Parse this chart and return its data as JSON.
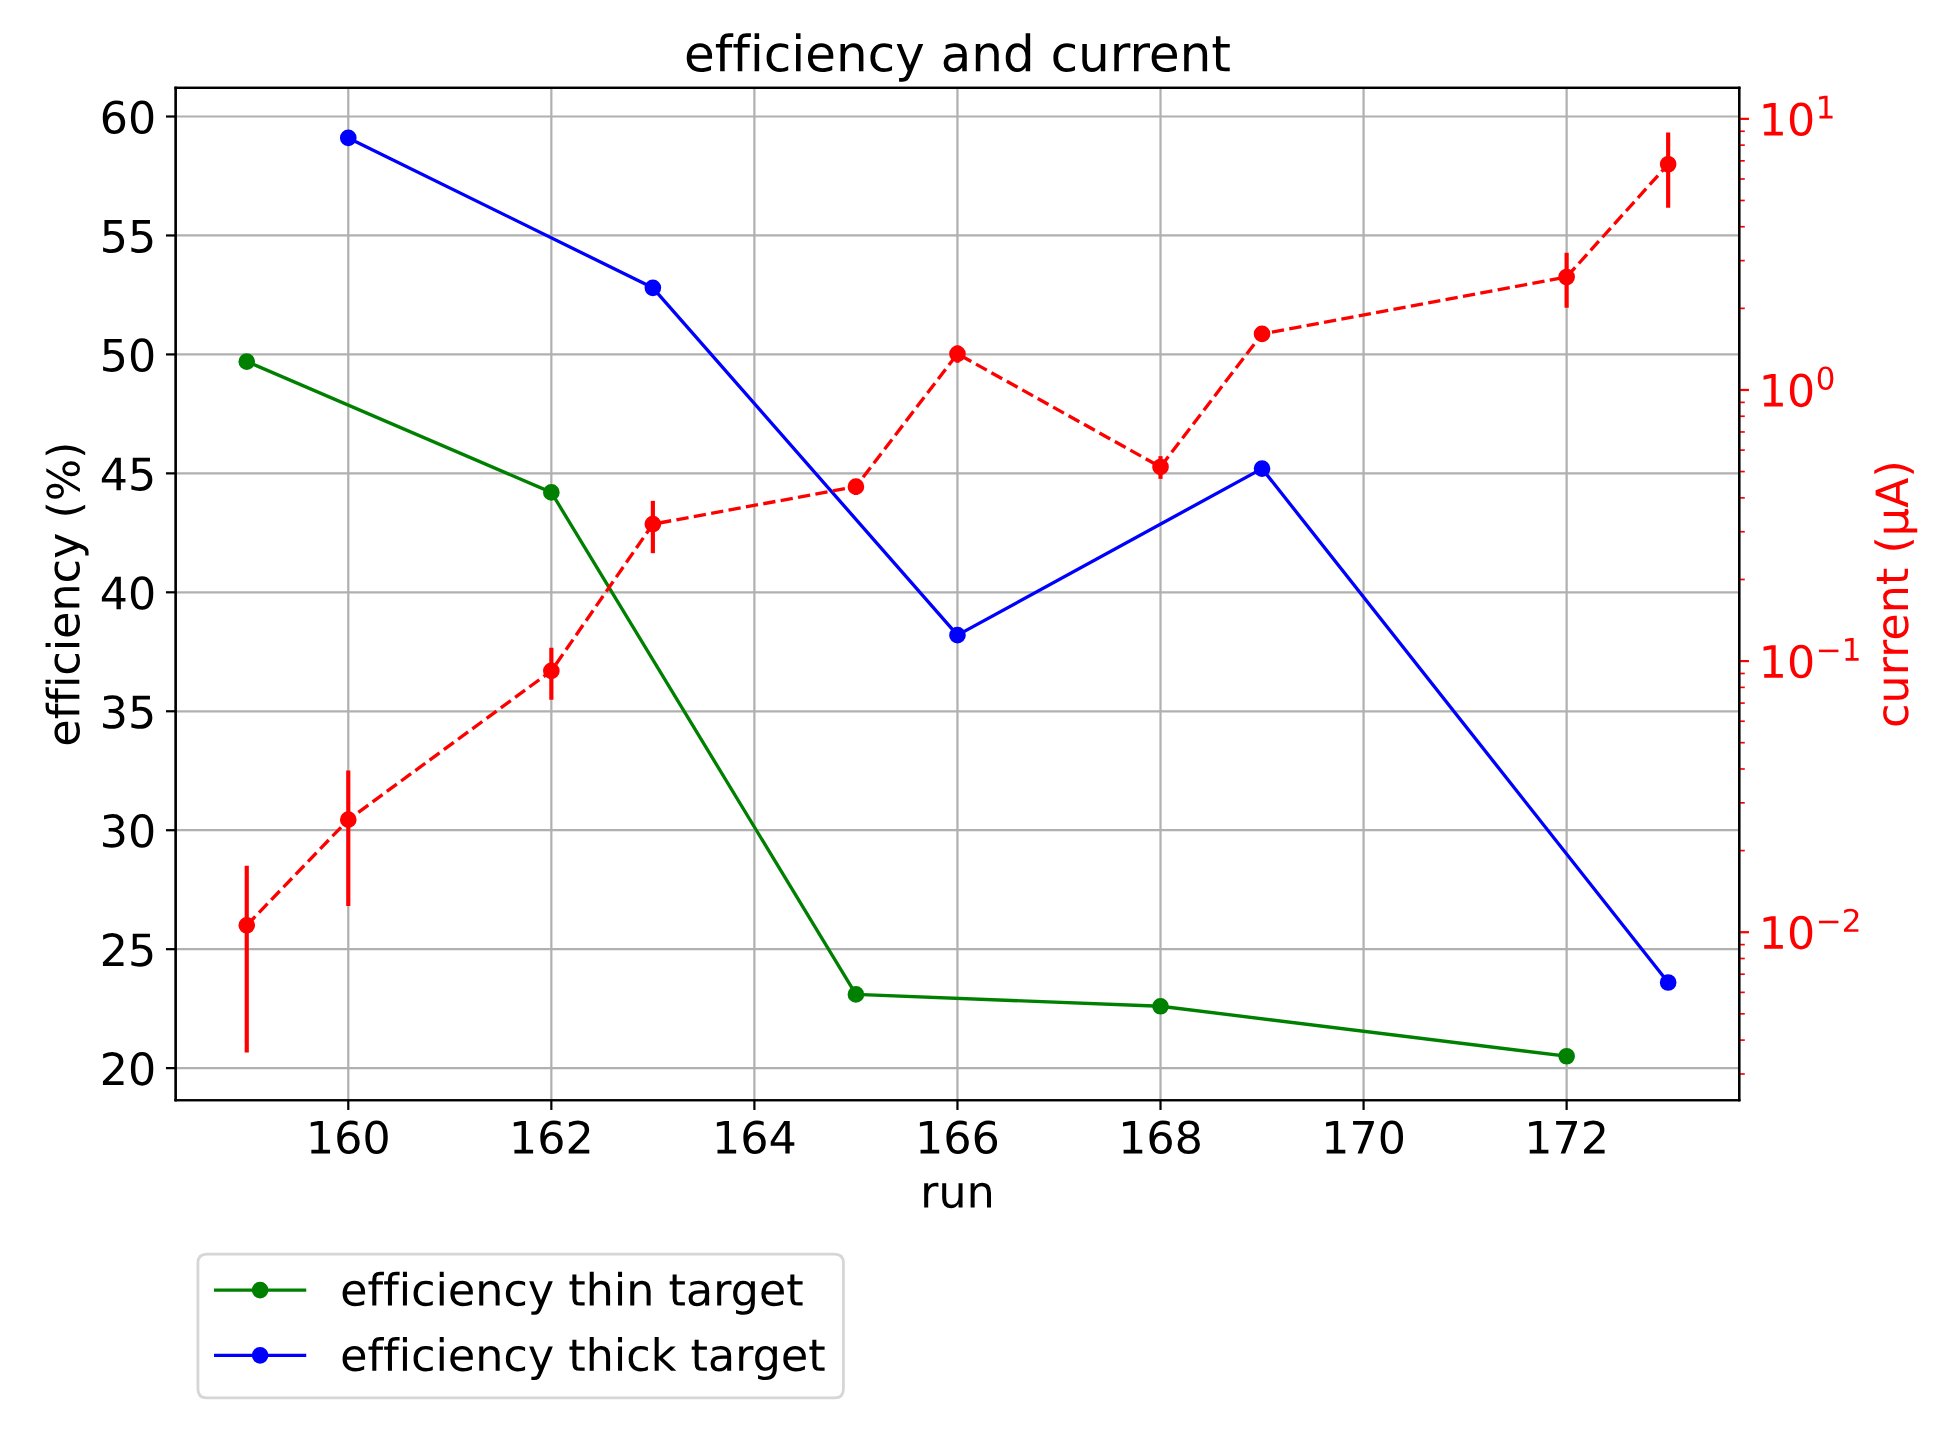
{
  "chart_data": {
    "type": "line",
    "title": "efficiency and current",
    "xlabel": "run",
    "ylabel": "efficiency (%)",
    "y2label": "current (µA)",
    "xlim": [
      158.3,
      173.7
    ],
    "xticks": [
      160,
      162,
      164,
      166,
      168,
      170,
      172
    ],
    "ylim": [
      18.65,
      61.2
    ],
    "yticks": [
      20,
      25,
      30,
      35,
      40,
      45,
      50,
      55,
      60
    ],
    "log": "y2",
    "y2lim": [
      0.0024,
      13
    ],
    "y2ticks": [
      {
        "value": 0.01,
        "label": "10$^{−2}$"
      },
      {
        "value": 0.1,
        "label": "10$^{−1}$"
      },
      {
        "value": 1,
        "label": "10$^{0}$"
      },
      {
        "value": 10,
        "label": "10$^{1}$"
      }
    ],
    "grid": true,
    "legend": "bottom left",
    "marker": "circle",
    "series": [
      {
        "name": "efficiency thin target",
        "color": "#008000",
        "x": [
          159,
          162,
          165,
          168,
          172
        ],
        "values": [
          49.7,
          44.2,
          23.1,
          22.6,
          20.5
        ],
        "line_style": "solid"
      },
      {
        "name": "efficiency thick target",
        "color": "#0000ff",
        "x": [
          160,
          163,
          166,
          169,
          173
        ],
        "values": [
          59.1,
          52.8,
          38.2,
          45.2,
          23.6
        ],
        "line_style": "solid"
      },
      {
        "color": "#ff0000",
        "axis": "y2",
        "line_style": "dashed",
        "x": [
          159,
          160,
          162,
          163,
          165,
          166,
          168,
          169,
          172,
          173
        ],
        "values": [
          0.0106,
          0.026,
          0.092,
          0.32,
          0.44,
          1.36,
          0.52,
          1.61,
          2.61,
          6.8
        ],
        "errors": [
          0.007,
          0.0135,
          0.02,
          0.07,
          0.03,
          0.1,
          0.05,
          0.1,
          0.6,
          2.1
        ]
      }
    ]
  }
}
